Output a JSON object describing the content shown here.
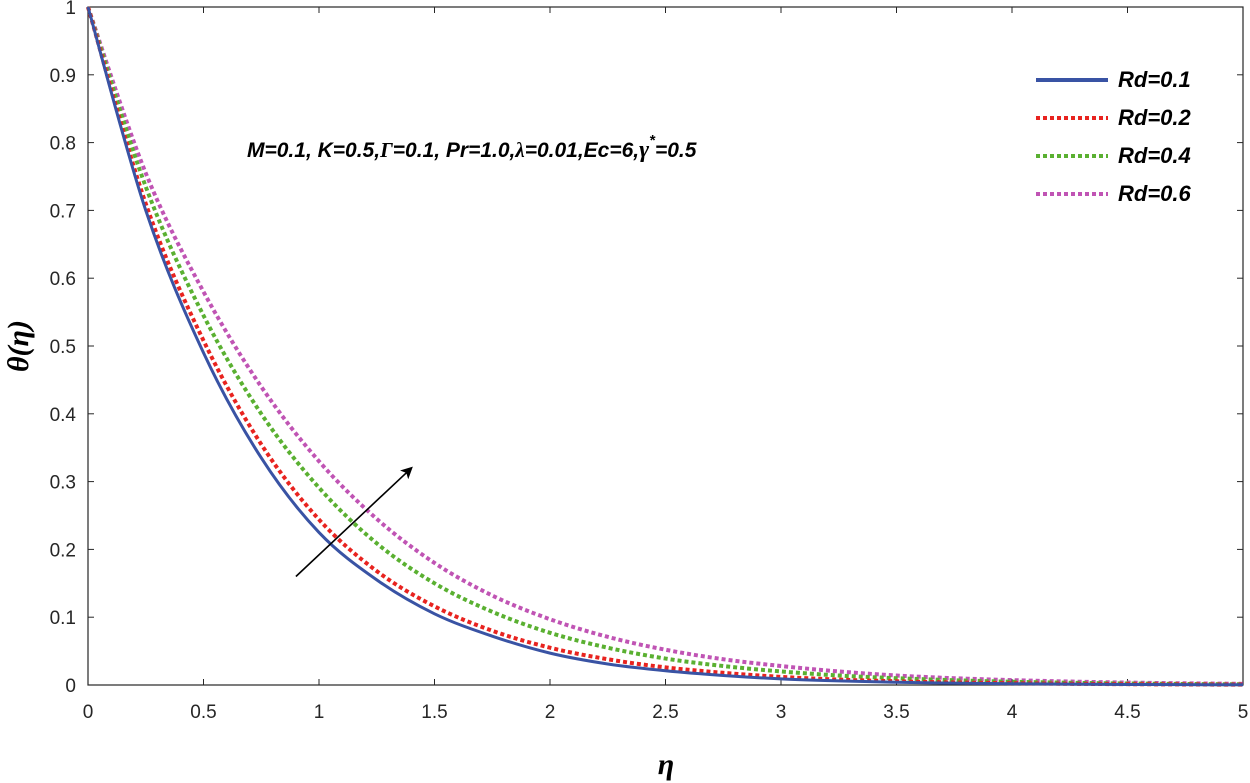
{
  "chart_data": {
    "type": "line",
    "xlabel": "η",
    "ylabel": "θ(η)",
    "xlim": [
      0,
      5
    ],
    "ylim": [
      0,
      1
    ],
    "x_ticks": [
      "0",
      "0.5",
      "1",
      "1.5",
      "2",
      "2.5",
      "3",
      "3.5",
      "4",
      "4.5",
      "5"
    ],
    "y_ticks": [
      "0",
      "0.1",
      "0.2",
      "0.3",
      "0.4",
      "0.5",
      "0.6",
      "0.7",
      "0.8",
      "0.9",
      "1"
    ],
    "grid": false,
    "legend_position": "top-right",
    "annotation": "M=0.1, K=0.5,Γ=0.1, Pr=1.0,λ=0.01,Ec=6,γ*=0.5",
    "annotation_parts": {
      "a": "M=0.1, K=0.5,",
      "b": "Γ",
      "c": "=0.1, Pr=1.0,",
      "d": "λ",
      "e": "=0.01,Ec=6,",
      "f": "γ",
      "g": "*",
      "h": "=0.5"
    },
    "trend_arrow": {
      "from": [
        0.9,
        0.16
      ],
      "to": [
        1.4,
        0.32
      ]
    },
    "x": [
      0,
      0.25,
      0.5,
      0.75,
      1,
      1.25,
      1.5,
      1.75,
      2,
      2.25,
      2.5,
      2.75,
      3,
      3.25,
      3.5,
      3.75,
      4,
      4.25,
      4.5,
      4.75,
      5
    ],
    "series": [
      {
        "name": "Rd=0.1",
        "color": "#3953a4",
        "dash": "solid",
        "values": [
          1.0,
          0.7,
          0.49,
          0.335,
          0.225,
          0.155,
          0.105,
          0.072,
          0.047,
          0.031,
          0.021,
          0.014,
          0.009,
          0.006,
          0.004,
          0.0028,
          0.0018,
          0.0012,
          0.0008,
          0.0005,
          0.0003
        ]
      },
      {
        "name": "Rd=0.2",
        "color": "#e8231f",
        "dash": "dotted",
        "values": [
          1.0,
          0.71,
          0.508,
          0.355,
          0.244,
          0.168,
          0.116,
          0.08,
          0.055,
          0.038,
          0.026,
          0.018,
          0.012,
          0.008,
          0.0055,
          0.0038,
          0.0026,
          0.0018,
          0.0012,
          0.0008,
          0.0005
        ]
      },
      {
        "name": "Rd=0.4",
        "color": "#5ab031",
        "dash": "dotted",
        "values": [
          1.0,
          0.735,
          0.545,
          0.4,
          0.291,
          0.209,
          0.15,
          0.108,
          0.077,
          0.055,
          0.039,
          0.028,
          0.02,
          0.014,
          0.01,
          0.007,
          0.0048,
          0.0033,
          0.0022,
          0.0015,
          0.001
        ]
      },
      {
        "name": "Rd=0.6",
        "color": "#c054b4",
        "dash": "dotted",
        "values": [
          1.0,
          0.755,
          0.58,
          0.44,
          0.33,
          0.245,
          0.18,
          0.132,
          0.097,
          0.071,
          0.052,
          0.038,
          0.028,
          0.02,
          0.014,
          0.01,
          0.0072,
          0.0051,
          0.0036,
          0.0025,
          0.0017
        ]
      }
    ]
  }
}
